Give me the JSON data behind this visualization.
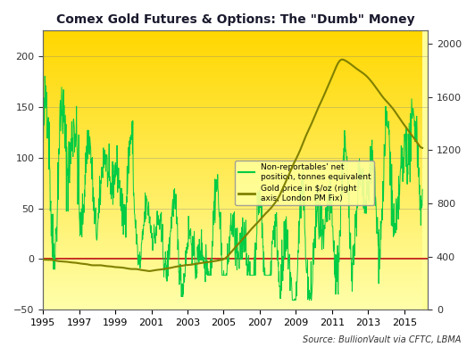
{
  "title": "Comex Gold Futures & Options: The \"Dumb\" Money",
  "source": "Source: BullionVault via CFTC, LBMA",
  "bg_color_top": "#FFD700",
  "bg_color_bottom": "#FFFF99",
  "left_ylim": [
    -50,
    225
  ],
  "right_ylim": [
    0,
    2100
  ],
  "left_yticks": [
    -50,
    0,
    50,
    100,
    150,
    200
  ],
  "right_yticks": [
    0,
    400,
    800,
    1200,
    1600,
    2000
  ],
  "xticks": [
    1995,
    1997,
    1999,
    2001,
    2003,
    2005,
    2007,
    2009,
    2011,
    2013,
    2015
  ],
  "zero_line_color": "#CC0000",
  "net_position_color": "#00CC44",
  "gold_price_color": "#808000",
  "legend_bg": "#FFFF99"
}
